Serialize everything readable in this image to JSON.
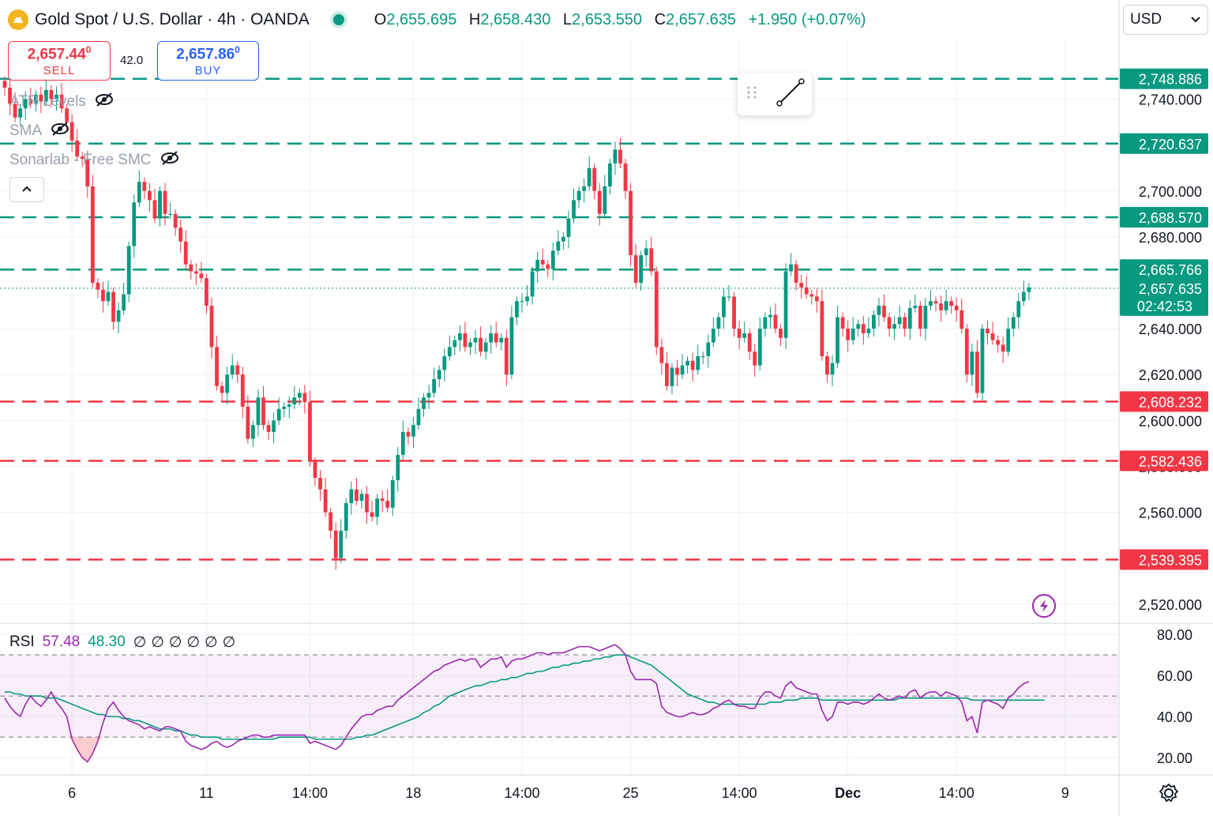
{
  "header": {
    "title": "Gold Spot / U.S. Dollar · 4h · OANDA",
    "ohlc": {
      "o_label": "O",
      "o": "2,655.695",
      "h_label": "H",
      "h": "2,658.430",
      "l_label": "L",
      "l": "2,653.550",
      "c_label": "C",
      "c": "2,657.635",
      "change": "+1.950 (+0.07%)"
    }
  },
  "trade": {
    "sell_price": "2,657.44",
    "sell_price_sup": "0",
    "sell_label": "SELL",
    "buy_price": "2,657.86",
    "buy_price_sup": "0",
    "buy_label": "BUY",
    "spread": "42.0"
  },
  "indicators": [
    {
      "label": "ATR Levels"
    },
    {
      "label": "SMA"
    },
    {
      "label": "Sonarlab - Free SMC"
    }
  ],
  "currency": {
    "selected": "USD"
  },
  "colors": {
    "up": "#089981",
    "down": "#f23645",
    "rsi": "#9c27b0",
    "rsi_ma": "#089981",
    "grid": "#eef0f4"
  },
  "rsi_legend": {
    "label": "RSI",
    "value": "57.48",
    "ma_value": "48.30",
    "extras": [
      "∅",
      "∅",
      "∅",
      "∅",
      "∅",
      "∅"
    ]
  },
  "icons": {
    "logo": "gold-coin-icon",
    "eye_off": "eye-off-icon",
    "collapse": "chevron-up-icon",
    "drag": "drag-handle-icon",
    "trendline": "trendline-icon",
    "dropdown": "chevron-down-icon",
    "bolt": "lightning-icon",
    "settings": "gear-icon"
  },
  "chart_data": {
    "type": "candlestick",
    "symbol": "XAUUSD",
    "interval": "4h",
    "ylim": [
      2512,
      2766
    ],
    "y_ticks": [
      "2,520.000",
      "2,560.000",
      "2,580.000",
      "2,600.000",
      "2,620.000",
      "2,640.000",
      "2,680.000",
      "2,700.000",
      "2,740.000"
    ],
    "y_tick_values": [
      2520,
      2560,
      2580,
      2600,
      2620,
      2640,
      2680,
      2700,
      2740
    ],
    "x_ticks": [
      {
        "label": "6",
        "index": 13
      },
      {
        "label": "11",
        "index": 39
      },
      {
        "label": "14:00",
        "index": 59
      },
      {
        "label": "18",
        "index": 79
      },
      {
        "label": "14:00",
        "index": 100
      },
      {
        "label": "25",
        "index": 121
      },
      {
        "label": "14:00",
        "index": 142
      },
      {
        "label": "Dec",
        "index": 163
      },
      {
        "label": "14:00",
        "index": 184
      },
      {
        "label": "9",
        "index": 205
      }
    ],
    "levels": [
      {
        "value": 2748.886,
        "label": "2,748.886",
        "color": "#089981"
      },
      {
        "value": 2720.637,
        "label": "2,720.637",
        "color": "#089981"
      },
      {
        "value": 2688.57,
        "label": "2,688.570",
        "color": "#089981"
      },
      {
        "value": 2665.766,
        "label": "2,665.766",
        "color": "#089981"
      },
      {
        "value": 2608.232,
        "label": "2,608.232",
        "color": "#f23645"
      },
      {
        "value": 2582.436,
        "label": "2,582.436",
        "color": "#f23645"
      },
      {
        "value": 2539.395,
        "label": "2,539.395",
        "color": "#f23645"
      }
    ],
    "last_price": {
      "value": 2657.635,
      "label": "2,657.635",
      "countdown": "02:42:53"
    },
    "closes": [
      2745,
      2738,
      2732,
      2736,
      2740,
      2738,
      2742,
      2739,
      2744,
      2740,
      2742,
      2736,
      2730,
      2722,
      2715,
      2714,
      2702,
      2660,
      2657,
      2652,
      2656,
      2643,
      2648,
      2655,
      2676,
      2695,
      2704,
      2700,
      2696,
      2688,
      2700,
      2690,
      2690,
      2684,
      2678,
      2668,
      2665,
      2664,
      2662,
      2650,
      2632,
      2615,
      2612,
      2620,
      2624,
      2620,
      2606,
      2592,
      2598,
      2610,
      2598,
      2595,
      2600,
      2605,
      2606,
      2607,
      2610,
      2612,
      2608,
      2582,
      2575,
      2570,
      2560,
      2552,
      2540,
      2552,
      2564,
      2570,
      2565,
      2568,
      2560,
      2558,
      2566,
      2565,
      2562,
      2574,
      2585,
      2595,
      2593,
      2598,
      2605,
      2610,
      2612,
      2618,
      2622,
      2628,
      2632,
      2635,
      2638,
      2632,
      2634,
      2636,
      2630,
      2634,
      2638,
      2634,
      2636,
      2620,
      2645,
      2652,
      2652,
      2654,
      2665,
      2670,
      2668,
      2666,
      2674,
      2678,
      2680,
      2688,
      2696,
      2700,
      2702,
      2710,
      2700,
      2690,
      2702,
      2712,
      2718,
      2712,
      2700,
      2672,
      2660,
      2672,
      2675,
      2665,
      2632,
      2625,
      2615,
      2623,
      2620,
      2624,
      2626,
      2622,
      2628,
      2628,
      2634,
      2640,
      2645,
      2654,
      2654,
      2640,
      2636,
      2638,
      2630,
      2624,
      2640,
      2645,
      2646,
      2640,
      2636,
      2665,
      2668,
      2660,
      2658,
      2655,
      2654,
      2652,
      2628,
      2620,
      2625,
      2645,
      2640,
      2635,
      2640,
      2642,
      2638,
      2640,
      2646,
      2650,
      2645,
      2640,
      2642,
      2645,
      2640,
      2649,
      2650,
      2640,
      2650,
      2652,
      2651,
      2648,
      2652,
      2650,
      2648,
      2640,
      2620,
      2630,
      2612,
      2640,
      2638,
      2635,
      2633,
      2630,
      2640,
      2645,
      2652,
      2656,
      2658
    ]
  },
  "rsi_chart": {
    "ylim": [
      12,
      85
    ],
    "y_ticks": [
      "80.00",
      "60.00",
      "40.00",
      "20.00"
    ],
    "y_tick_values": [
      80,
      60,
      40,
      20
    ],
    "bands": [
      70,
      50,
      30
    ],
    "rsi": [
      49,
      45,
      42,
      40,
      46,
      50,
      47,
      45,
      48,
      52,
      47,
      44,
      40,
      29,
      24,
      20,
      18,
      22,
      28,
      37,
      44,
      47,
      43,
      40,
      38,
      37,
      36,
      34,
      35,
      34,
      33,
      35,
      35,
      34,
      33,
      28,
      26,
      25,
      24,
      25,
      27,
      28,
      26,
      25,
      26,
      28,
      29,
      30,
      31,
      31,
      30,
      30,
      31,
      31,
      31,
      31,
      31,
      31,
      31,
      27,
      28,
      27,
      26,
      25,
      24,
      26,
      30,
      34,
      37,
      40,
      41,
      41,
      43,
      44,
      45,
      45,
      48,
      50,
      52,
      54,
      56,
      58,
      60,
      62,
      63,
      65,
      66,
      67,
      68,
      67,
      68,
      68,
      64,
      66,
      68,
      68,
      69,
      64,
      67,
      68,
      68,
      69,
      70,
      71,
      71,
      70,
      71,
      71,
      71,
      72,
      73,
      74,
      74,
      74,
      73,
      72,
      73,
      74,
      75,
      73,
      70,
      62,
      58,
      58,
      58,
      58,
      56,
      45,
      42,
      41,
      40,
      40,
      41,
      42,
      41,
      41,
      42,
      44,
      45,
      47,
      48,
      46,
      45,
      45,
      44,
      44,
      49,
      52,
      52,
      50,
      49,
      55,
      57,
      54,
      53,
      52,
      51,
      51,
      43,
      38,
      40,
      47,
      47,
      46,
      47,
      47,
      46,
      47,
      49,
      51,
      49,
      48,
      49,
      50,
      49,
      52,
      53,
      49,
      51,
      52,
      52,
      50,
      52,
      51,
      50,
      47,
      38,
      40,
      32,
      47,
      48,
      47,
      46,
      44,
      49,
      51,
      54,
      56,
      57
    ],
    "rsi_ma": [
      52,
      52,
      51,
      51,
      50,
      50,
      50,
      50,
      49,
      49,
      49,
      48,
      47,
      46,
      45,
      44,
      43,
      42,
      41,
      41,
      40,
      40,
      40,
      39,
      39,
      38,
      38,
      37,
      36,
      35,
      34,
      34,
      34,
      33,
      33,
      32,
      31,
      31,
      30,
      30,
      30,
      30,
      29,
      29,
      29,
      29,
      29,
      29,
      29,
      29,
      29,
      29,
      29,
      30,
      30,
      30,
      30,
      30,
      30,
      30,
      29,
      29,
      29,
      29,
      29,
      29,
      29,
      29,
      30,
      30,
      31,
      31,
      32,
      33,
      34,
      35,
      36,
      37,
      38,
      39,
      40,
      42,
      43,
      45,
      46,
      48,
      50,
      51,
      52,
      53,
      54,
      55,
      55,
      56,
      57,
      57,
      58,
      58,
      59,
      59,
      60,
      61,
      61,
      62,
      62,
      63,
      64,
      64,
      65,
      65,
      66,
      66,
      67,
      67,
      68,
      68,
      69,
      69,
      70,
      70,
      70,
      69,
      68,
      67,
      66,
      65,
      63,
      61,
      59,
      57,
      55,
      53,
      51,
      50,
      49,
      48,
      47,
      47,
      46,
      46,
      46,
      46,
      46,
      46,
      46,
      46,
      46,
      46,
      47,
      47,
      47,
      48,
      48,
      48,
      49,
      49,
      49,
      49,
      48,
      48,
      48,
      48,
      48,
      48,
      48,
      48,
      48,
      48,
      48,
      48,
      48,
      48,
      48,
      49,
      49,
      49,
      49,
      49,
      49,
      49,
      49,
      49,
      49,
      49,
      49,
      49,
      49,
      48,
      48,
      48,
      48,
      48,
      48,
      48,
      48,
      48,
      48,
      48,
      48,
      48,
      48,
      48
    ]
  }
}
